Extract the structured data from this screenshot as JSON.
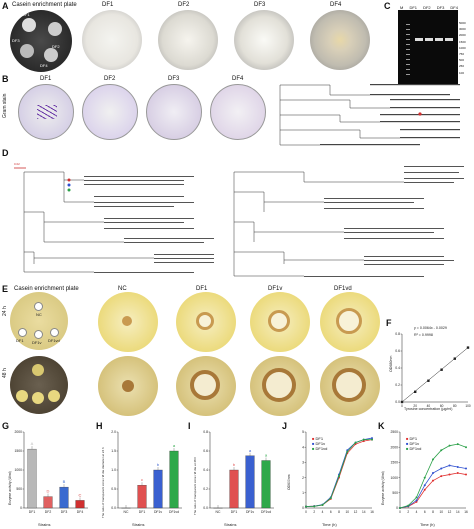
{
  "panels": {
    "A": {
      "letter": "A",
      "plates": [
        {
          "title": "Casein enrichment plate",
          "labels": [
            "DF1",
            "DF3",
            "DF2",
            "DF4"
          ]
        },
        {
          "title": "DF1"
        },
        {
          "title": "DF2"
        },
        {
          "title": "DF3"
        },
        {
          "title": "DF4"
        }
      ]
    },
    "B": {
      "letter": "B",
      "side_label": "Gram stain",
      "titles": [
        "DF1",
        "DF2",
        "DF3",
        "DF4"
      ]
    },
    "C": {
      "letter": "C",
      "lanes": [
        "M",
        "DF1",
        "DF2",
        "DF3",
        "DF4"
      ],
      "markers": [
        "5000",
        "3000",
        "2000",
        "1500",
        "1000",
        "750",
        "500",
        "250",
        "100"
      ]
    },
    "D": {
      "letter": "D",
      "scale_label": "0.02"
    },
    "E": {
      "letter": "E",
      "time_labels": [
        "24 h",
        "48 h"
      ],
      "titles": [
        "Casein enrichment plate",
        "NC",
        "DF1",
        "DF1v",
        "DF1vd"
      ],
      "plate_labels": [
        "NC",
        "DF1",
        "DF1v",
        "DF1vd"
      ]
    },
    "F": {
      "letter": "F",
      "equation": "y = 0.0064x - 0.0029",
      "r2": "R² = 0.9998",
      "xlabel": "Tyrosine concentration (μg/ml)",
      "ylabel": "OD680nm"
    },
    "G": {
      "letter": "G",
      "xlabel": "Strains",
      "ylabel": "Enzyme activity (U/ml)"
    },
    "H": {
      "letter": "H",
      "xlabel": "Strains",
      "ylabel": "The ratio of transparent zone / Ø dia diameter at 24 h"
    },
    "I": {
      "letter": "I",
      "xlabel": "Strains",
      "ylabel": "The ratio of transparent zone / Ø dia at 48 h"
    },
    "J": {
      "letter": "J",
      "xlabel": "Time (h)",
      "ylabel": "OD600nm",
      "legend": [
        "DF1",
        "DF1v",
        "DF1vd"
      ]
    },
    "K": {
      "letter": "K",
      "xlabel": "Time (h)",
      "ylabel": "Enzyme activity (U/ml)",
      "legend": [
        "DF1",
        "DF1v",
        "DF1vd"
      ]
    }
  },
  "chart_data": [
    {
      "id": "F",
      "type": "scatter",
      "x": [
        0,
        20,
        40,
        60,
        80,
        100
      ],
      "y": [
        0.0,
        0.12,
        0.25,
        0.38,
        0.51,
        0.64
      ],
      "xticks": [
        "0",
        "20",
        "40",
        "60",
        "80",
        "100"
      ],
      "yticks": [
        "0.0",
        "0.2",
        "0.4",
        "0.6",
        "0.8"
      ],
      "xlim": [
        0,
        100
      ],
      "ylim": [
        0,
        0.8
      ]
    },
    {
      "id": "G",
      "type": "bar",
      "categories": [
        "DF1",
        "DF2",
        "DF3",
        "DF4"
      ],
      "values": [
        1550,
        300,
        550,
        200
      ],
      "letters": [
        "A",
        "D",
        "B",
        "C"
      ],
      "colors": [
        "#b8b8b8",
        "#e06060",
        "#3a6ad0",
        "#d03030"
      ],
      "yticks": [
        "0",
        "500",
        "1000",
        "1500",
        "2000"
      ],
      "ylim": [
        0,
        2000
      ]
    },
    {
      "id": "H",
      "type": "bar",
      "categories": [
        "NC",
        "DF1",
        "DF1v",
        "DF1vd"
      ],
      "values": [
        0,
        0.6,
        1.0,
        1.5
      ],
      "letters": [
        "",
        "c",
        "b",
        "a"
      ],
      "colors": [
        "#888888",
        "#e05050",
        "#3a60d0",
        "#2ea84a"
      ],
      "yticks": [
        "0.0",
        "0.5",
        "1.0",
        "1.5",
        "2.0"
      ],
      "ylim": [
        0,
        2.0
      ]
    },
    {
      "id": "I",
      "type": "bar",
      "categories": [
        "NC",
        "DF1",
        "DF1v",
        "DF1vd"
      ],
      "values": [
        0,
        0.4,
        0.55,
        0.5
      ],
      "letters": [
        "",
        "b",
        "a",
        "a"
      ],
      "colors": [
        "#888888",
        "#e05050",
        "#3a60d0",
        "#2ea84a"
      ],
      "yticks": [
        "0.0",
        "0.2",
        "0.4",
        "0.6",
        "0.8"
      ],
      "ylim": [
        0,
        0.8
      ]
    },
    {
      "id": "J",
      "type": "line",
      "x": [
        0,
        2,
        4,
        6,
        8,
        10,
        12,
        14,
        16
      ],
      "xticks": [
        "0",
        "2",
        "4",
        "6",
        "8",
        "10",
        "12",
        "14",
        "16"
      ],
      "yticks": [
        "0",
        "1",
        "2",
        "3",
        "4",
        "5"
      ],
      "ylim": [
        0,
        5
      ],
      "series": [
        {
          "name": "DF1",
          "color": "#e03030",
          "values": [
            0.1,
            0.12,
            0.2,
            0.6,
            2.0,
            3.6,
            4.2,
            4.4,
            4.5
          ]
        },
        {
          "name": "DF1v",
          "color": "#3050d0",
          "values": [
            0.1,
            0.12,
            0.22,
            0.7,
            2.2,
            3.8,
            4.3,
            4.5,
            4.6
          ]
        },
        {
          "name": "DF1vd",
          "color": "#2aa048",
          "values": [
            0.1,
            0.11,
            0.2,
            0.65,
            2.1,
            3.7,
            4.3,
            4.5,
            4.5
          ]
        }
      ]
    },
    {
      "id": "K",
      "type": "line",
      "x": [
        0,
        2,
        4,
        6,
        8,
        10,
        12,
        14,
        16
      ],
      "xticks": [
        "0",
        "2",
        "4",
        "6",
        "8",
        "10",
        "12",
        "14",
        "16"
      ],
      "yticks": [
        "0",
        "500",
        "1000",
        "1500",
        "2000",
        "2500"
      ],
      "ylim": [
        0,
        2500
      ],
      "series": [
        {
          "name": "DF1",
          "color": "#e03030",
          "values": [
            0,
            50,
            200,
            600,
            900,
            1050,
            1100,
            1150,
            1100
          ]
        },
        {
          "name": "DF1v",
          "color": "#3050d0",
          "values": [
            0,
            60,
            250,
            750,
            1150,
            1300,
            1400,
            1350,
            1300
          ]
        },
        {
          "name": "DF1vd",
          "color": "#2aa048",
          "values": [
            0,
            80,
            350,
            1000,
            1600,
            1900,
            2050,
            2100,
            2000
          ]
        }
      ]
    }
  ]
}
